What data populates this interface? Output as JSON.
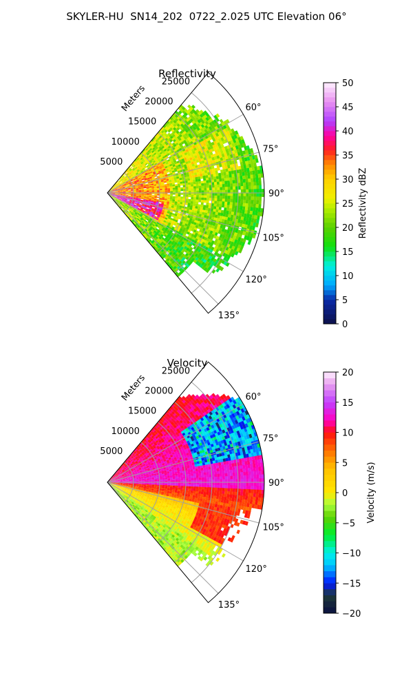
{
  "figure": {
    "suptitle": "SKYLER-HU  SN14_202  0722_2.025 UTC Elevation 06°"
  },
  "chart_data": [
    {
      "type": "heatmap",
      "projection": "polar-sector",
      "title": "Reflectivity",
      "radial_label": "Meters",
      "radial_ticks": [
        "5000",
        "10000",
        "15000",
        "20000",
        "25000"
      ],
      "radial_max": 30000,
      "azimuth_range": [
        40,
        140
      ],
      "azimuth_ticks": [
        "60°",
        "75°",
        "90°",
        "105°",
        "120°",
        "135°"
      ],
      "grid": true,
      "colorbar": {
        "label": "Reflectivity dBZ",
        "range": [
          0,
          50
        ],
        "ticks": [
          "0",
          "5",
          "10",
          "15",
          "20",
          "25",
          "30",
          "35",
          "40",
          "45",
          "50"
        ],
        "levels": 50
      }
    },
    {
      "type": "heatmap",
      "projection": "polar-sector",
      "title": "Velocity",
      "radial_label": "Meters",
      "radial_ticks": [
        "5000",
        "10000",
        "15000",
        "20000",
        "25000"
      ],
      "radial_max": 30000,
      "azimuth_range": [
        40,
        140
      ],
      "azimuth_ticks": [
        "60°",
        "75°",
        "90°",
        "105°",
        "120°",
        "135°"
      ],
      "grid": true,
      "colorbar": {
        "label": "Velocity (m/s)",
        "range": [
          -20,
          20
        ],
        "ticks": [
          "−20",
          "−15",
          "−10",
          "−5",
          "0",
          "5",
          "10",
          "15",
          "20"
        ],
        "levels": 40
      }
    }
  ]
}
